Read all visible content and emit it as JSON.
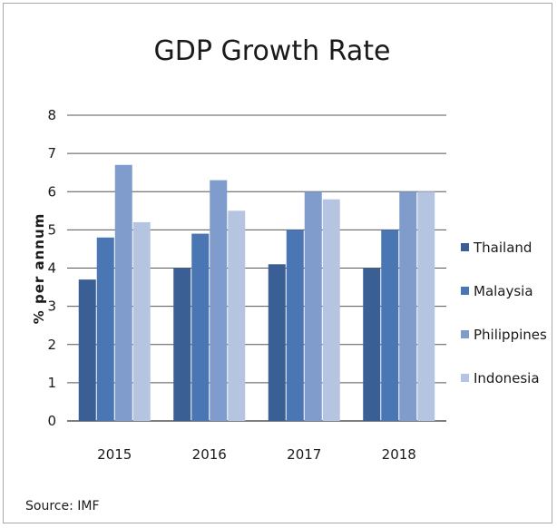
{
  "chart_data": {
    "type": "bar",
    "title": "GDP Growth Rate",
    "xlabel": "",
    "ylabel": "% per annum",
    "categories": [
      "2015",
      "2016",
      "2017",
      "2018"
    ],
    "ylim": [
      0,
      8
    ],
    "yticks": [
      0,
      1,
      2,
      3,
      4,
      5,
      6,
      7,
      8
    ],
    "grid": true,
    "legend_position": "right",
    "series": [
      {
        "name": "Thailand",
        "values": [
          3.7,
          4.0,
          4.1,
          4.0
        ],
        "color": "#3a5f94"
      },
      {
        "name": "Malaysia",
        "values": [
          4.8,
          4.9,
          5.0,
          5.0
        ],
        "color": "#4a77b4"
      },
      {
        "name": "Philippines",
        "values": [
          6.7,
          6.3,
          6.0,
          6.0
        ],
        "color": "#7f9ccc"
      },
      {
        "name": "Indonesia",
        "values": [
          5.2,
          5.5,
          5.8,
          6.0
        ],
        "color": "#b5c5e1"
      }
    ],
    "source": "Source: IMF"
  }
}
